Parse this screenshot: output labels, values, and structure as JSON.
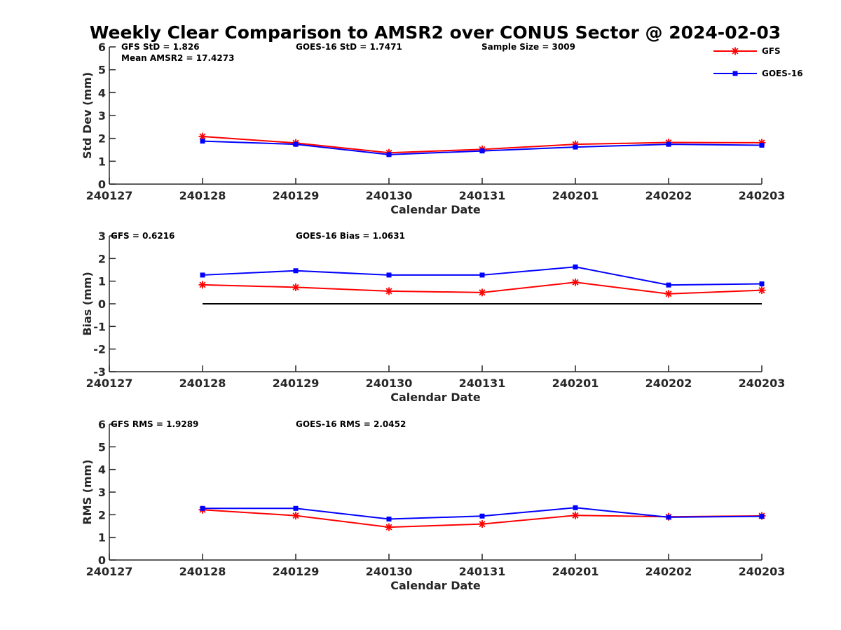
{
  "figure": {
    "title": "Weekly Clear Comparison to AMSR2 over CONUS Sector @ 2024-02-03",
    "legend": [
      {
        "name": "GFS",
        "color": "#ff0000",
        "marker": "asterisk"
      },
      {
        "name": "GOES-16",
        "color": "#0000ff",
        "marker": "square"
      }
    ]
  },
  "chart_data": [
    {
      "type": "line",
      "id": "stddev",
      "xlabel": "Calendar Date",
      "ylabel": "Std Dev (mm)",
      "categories": [
        "240127",
        "240128",
        "240129",
        "240130",
        "240131",
        "240201",
        "240202",
        "240203"
      ],
      "ylim": [
        0,
        6
      ],
      "yticks": [
        0,
        1,
        2,
        3,
        4,
        5,
        6
      ],
      "grid": false,
      "legend_position": "top-right",
      "annotations": [
        "GFS StD = 1.826",
        "GOES-16 StD = 1.7471",
        "Sample Size = 3009",
        "Mean AMSR2 = 17.4273"
      ],
      "series": [
        {
          "name": "GFS",
          "color": "#ff0000",
          "marker": "asterisk",
          "values": [
            null,
            2.08,
            1.8,
            1.37,
            1.52,
            1.74,
            1.82,
            1.81
          ]
        },
        {
          "name": "GOES-16",
          "color": "#0000ff",
          "marker": "square",
          "values": [
            null,
            1.88,
            1.74,
            1.29,
            1.45,
            1.62,
            1.74,
            1.7
          ]
        }
      ]
    },
    {
      "type": "line",
      "id": "bias",
      "xlabel": "Calendar Date",
      "ylabel": "Bias (mm)",
      "categories": [
        "240127",
        "240128",
        "240129",
        "240130",
        "240131",
        "240201",
        "240202",
        "240203"
      ],
      "ylim": [
        -3,
        3
      ],
      "yticks": [
        -3,
        -2,
        -1,
        0,
        1,
        2,
        3
      ],
      "grid": false,
      "reference_line": 0,
      "annotations": [
        "GFS = 0.6216",
        "GOES-16 Bias  = 1.0631"
      ],
      "series": [
        {
          "name": "GFS",
          "color": "#ff0000",
          "marker": "asterisk",
          "values": [
            null,
            0.84,
            0.73,
            0.56,
            0.5,
            0.95,
            0.44,
            0.6
          ]
        },
        {
          "name": "GOES-16",
          "color": "#0000ff",
          "marker": "square",
          "values": [
            null,
            1.27,
            1.46,
            1.27,
            1.27,
            1.63,
            0.83,
            0.88
          ]
        }
      ]
    },
    {
      "type": "line",
      "id": "rms",
      "xlabel": "Calendar Date",
      "ylabel": "RMS (mm)",
      "categories": [
        "240127",
        "240128",
        "240129",
        "240130",
        "240131",
        "240201",
        "240202",
        "240203"
      ],
      "ylim": [
        0,
        6
      ],
      "yticks": [
        0,
        1,
        2,
        3,
        4,
        5,
        6
      ],
      "grid": false,
      "annotations": [
        "GFS RMS = 1.9289",
        "GOES-16 RMS = 2.0452"
      ],
      "series": [
        {
          "name": "GFS",
          "color": "#ff0000",
          "marker": "asterisk",
          "values": [
            null,
            2.22,
            1.96,
            1.45,
            1.59,
            1.97,
            1.91,
            1.95
          ]
        },
        {
          "name": "GOES-16",
          "color": "#0000ff",
          "marker": "square",
          "values": [
            null,
            2.28,
            2.28,
            1.81,
            1.94,
            2.31,
            1.89,
            1.93
          ]
        }
      ]
    }
  ]
}
